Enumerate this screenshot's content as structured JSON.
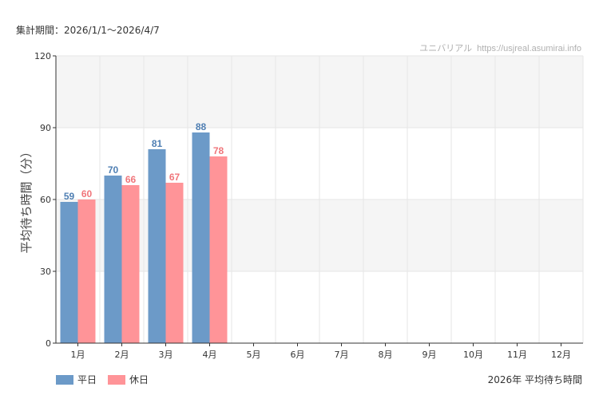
{
  "header": {
    "period_label": "集計期間：2026/1/1～2026/4/7",
    "source_name": "ユニバリアル",
    "source_url": "https://usjreal.asumirai.info"
  },
  "colors": {
    "weekday": "#6c9ac8",
    "holiday": "#ff9498",
    "weekday_label": "#4f7fb3",
    "holiday_label": "#f0767b",
    "band": "#f5f5f5",
    "grid": "#e6e6e6",
    "axis": "#333333"
  },
  "footer": {
    "caption": "2026年 平均待ち時間"
  },
  "chart_data": {
    "type": "bar",
    "title": "",
    "xlabel": "",
    "ylabel": "平均待ち時間（分）",
    "ylim": [
      0,
      120
    ],
    "yticks": [
      0,
      30,
      60,
      90,
      120
    ],
    "grid": true,
    "legend_position": "bottom-left",
    "categories": [
      "1月",
      "2月",
      "3月",
      "4月",
      "5月",
      "6月",
      "7月",
      "8月",
      "9月",
      "10月",
      "11月",
      "12月"
    ],
    "series": [
      {
        "name": "平日",
        "values": [
          59,
          70,
          81,
          88,
          null,
          null,
          null,
          null,
          null,
          null,
          null,
          null
        ]
      },
      {
        "name": "休日",
        "values": [
          60,
          66,
          67,
          78,
          null,
          null,
          null,
          null,
          null,
          null,
          null,
          null
        ]
      }
    ]
  }
}
